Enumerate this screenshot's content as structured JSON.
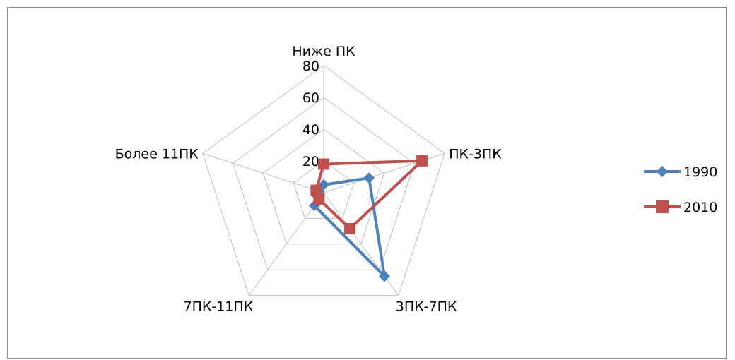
{
  "chart_data": {
    "type": "radar",
    "categories": [
      "Ниже ПК",
      "ПК-3ПК",
      "3ПК-7ПК",
      "7ПК-11ПК",
      "Более 11ПК"
    ],
    "r_ticks": [
      "0",
      "20",
      "40",
      "60",
      "80"
    ],
    "rlim": [
      0,
      80
    ],
    "grid": true,
    "legend_position": "right",
    "series": [
      {
        "name": "1990",
        "values": [
          5,
          30,
          65,
          10,
          3
        ],
        "color": "#4F81BD",
        "marker": "diamond"
      },
      {
        "name": "2010",
        "values": [
          18,
          65,
          28,
          5,
          5
        ],
        "color": "#C0504D",
        "marker": "square"
      }
    ]
  }
}
